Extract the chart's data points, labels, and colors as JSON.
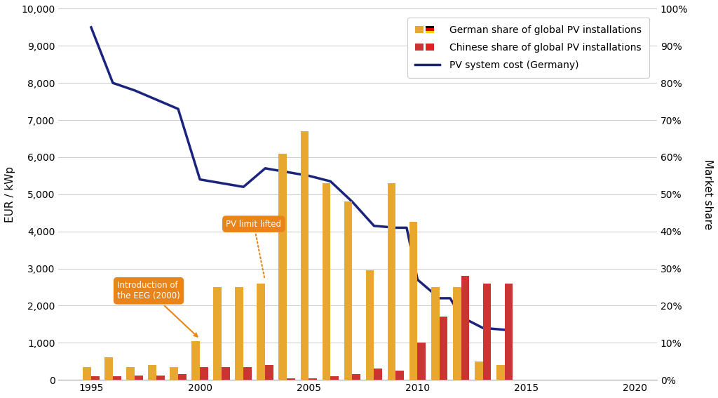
{
  "years": [
    1995,
    1996,
    1997,
    1998,
    1999,
    2000,
    2001,
    2002,
    2003,
    2004,
    2005,
    2006,
    2007,
    2008,
    2009,
    2010,
    2011,
    2012,
    2013,
    2014
  ],
  "german_share_pct": [
    3.5,
    6.0,
    3.5,
    4.0,
    3.5,
    10.5,
    25.0,
    25.0,
    26.0,
    61.0,
    67.0,
    53.0,
    48.0,
    29.5,
    53.0,
    42.5,
    25.0,
    25.0,
    5.0,
    4.0
  ],
  "chinese_share_pct": [
    1.0,
    1.0,
    1.2,
    1.2,
    1.5,
    3.5,
    3.5,
    3.5,
    4.0,
    0.5,
    0.5,
    1.0,
    1.5,
    3.0,
    2.5,
    10.0,
    17.0,
    28.0,
    26.0,
    26.0
  ],
  "pv_cost_years": [
    1995,
    1996,
    1997,
    1998,
    1999,
    2000,
    2001,
    2002,
    2003,
    2004,
    2005,
    2006,
    2007,
    2008,
    2009,
    2009.5,
    2010,
    2011,
    2011.5,
    2012,
    2013,
    2014
  ],
  "pv_cost_values": [
    9500,
    8000,
    7800,
    7550,
    7300,
    5400,
    5300,
    5200,
    5700,
    5600,
    5500,
    5350,
    4800,
    4150,
    4100,
    4100,
    2700,
    2200,
    2200,
    1700,
    1400,
    1350
  ],
  "left_ylim": [
    0,
    10000
  ],
  "left_yticks": [
    0,
    1000,
    2000,
    3000,
    4000,
    5000,
    6000,
    7000,
    8000,
    9000,
    10000
  ],
  "left_yticklabels": [
    "0",
    "1,000",
    "2,000",
    "3,000",
    "4,000",
    "5,000",
    "6,000",
    "7,000",
    "8,000",
    "9,000",
    "10,000"
  ],
  "right_yticks": [
    0,
    10,
    20,
    30,
    40,
    50,
    60,
    70,
    80,
    90,
    100
  ],
  "right_yticklabels": [
    "0%",
    "10%",
    "20%",
    "30%",
    "40%",
    "50%",
    "60%",
    "70%",
    "80%",
    "90%",
    "100%"
  ],
  "ylabel_left": "EUR / kWp",
  "ylabel_right": "Market share",
  "german_bar_color": "#E8A830",
  "chinese_bar_color": "#CC3333",
  "line_color": "#1a237e",
  "annotation_color": "#E8841A",
  "xlim": [
    1993.5,
    2021
  ],
  "xticks": [
    1995,
    2000,
    2005,
    2010,
    2015,
    2020
  ],
  "bar_width": 0.38
}
